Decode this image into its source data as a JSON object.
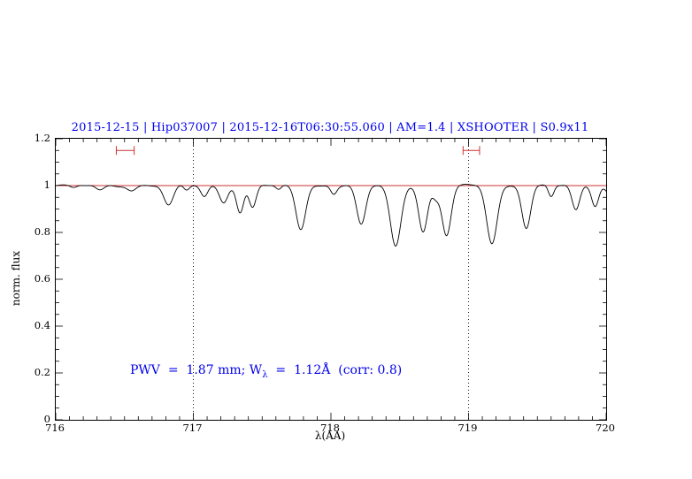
{
  "header": {
    "title": "2015-12-15 | Hip037007 | 2015-12-16T06:30:55.060 | AM=1.4 | XSHOOTER | S0.9x11"
  },
  "axes": {
    "x_label": "λ(AA)",
    "y_label": "norm. flux",
    "x_ticks": [
      {
        "value": 716,
        "label": "716"
      },
      {
        "value": 717,
        "label": "717"
      },
      {
        "value": 718,
        "label": "718"
      },
      {
        "value": 719,
        "label": "719"
      },
      {
        "value": 720,
        "label": "720"
      }
    ],
    "y_ticks": [
      {
        "value": 1.2,
        "label": "1.2"
      },
      {
        "value": 1.0,
        "label": "1"
      },
      {
        "value": 0.8,
        "label": "0.8"
      },
      {
        "value": 0.6,
        "label": "0.6"
      },
      {
        "value": 0.4,
        "label": "0.4"
      },
      {
        "value": 0.2,
        "label": "0.2"
      },
      {
        "value": 0.0,
        "label": "0"
      }
    ]
  },
  "annotation": {
    "prefix": "PWV  =  1.87 mm; W",
    "sub": "λ",
    "suffix": "  =  1.12Å  (corr: 0.8)"
  },
  "colors": {
    "title_blue": "#0000ee",
    "annotation_blue": "#0000ee",
    "reference_red": "#cc3333",
    "spectrum_black": "#000000",
    "dotted_black": "#000000"
  },
  "chart_data": {
    "type": "line",
    "title": "2015-12-15 | Hip037007 | 2015-12-16T06:30:55.060 | AM=1.4 | XSHOOTER | S0.9x11",
    "xlabel": "λ(AA)",
    "ylabel": "norm. flux",
    "xlim": [
      716,
      720
    ],
    "ylim": [
      0,
      1.2
    ],
    "grid": false,
    "continuum_level": 1.0,
    "reference_lines": {
      "vertical_dotted_x": [
        717,
        719
      ],
      "horizontal_red_y": 1.0
    },
    "range_markers": [
      {
        "x1": 716.44,
        "x2": 716.57,
        "y": 1.15
      },
      {
        "x1": 718.96,
        "x2": 719.08,
        "y": 1.15
      }
    ],
    "x_major_tick_step": 1.0,
    "x_minor_tick_step": 0.1,
    "y_major_tick_step": 0.2,
    "y_minor_tick_step": 0.05,
    "noise_amplitude": 0.006,
    "absorption_lines": [
      {
        "center": 716.13,
        "depth": 0.012,
        "sigma": 0.025
      },
      {
        "center": 716.32,
        "depth": 0.02,
        "sigma": 0.03
      },
      {
        "center": 716.55,
        "depth": 0.02,
        "sigma": 0.03
      },
      {
        "center": 716.82,
        "depth": 0.085,
        "sigma": 0.035
      },
      {
        "center": 716.95,
        "depth": 0.02,
        "sigma": 0.02
      },
      {
        "center": 717.08,
        "depth": 0.045,
        "sigma": 0.025
      },
      {
        "center": 717.22,
        "depth": 0.07,
        "sigma": 0.03
      },
      {
        "center": 717.34,
        "depth": 0.115,
        "sigma": 0.026
      },
      {
        "center": 717.43,
        "depth": 0.095,
        "sigma": 0.026
      },
      {
        "center": 717.62,
        "depth": 0.02,
        "sigma": 0.02
      },
      {
        "center": 717.78,
        "depth": 0.185,
        "sigma": 0.035
      },
      {
        "center": 718.02,
        "depth": 0.035,
        "sigma": 0.022
      },
      {
        "center": 718.22,
        "depth": 0.17,
        "sigma": 0.033
      },
      {
        "center": 718.47,
        "depth": 0.26,
        "sigma": 0.038
      },
      {
        "center": 718.67,
        "depth": 0.195,
        "sigma": 0.032
      },
      {
        "center": 718.76,
        "depth": 0.05,
        "sigma": 0.025
      },
      {
        "center": 718.84,
        "depth": 0.215,
        "sigma": 0.033
      },
      {
        "center": 719.17,
        "depth": 0.245,
        "sigma": 0.038
      },
      {
        "center": 719.42,
        "depth": 0.18,
        "sigma": 0.032
      },
      {
        "center": 719.6,
        "depth": 0.05,
        "sigma": 0.02
      },
      {
        "center": 719.78,
        "depth": 0.105,
        "sigma": 0.028
      },
      {
        "center": 719.92,
        "depth": 0.085,
        "sigma": 0.025
      },
      {
        "center": 720.04,
        "depth": 0.05,
        "sigma": 0.03
      }
    ]
  }
}
